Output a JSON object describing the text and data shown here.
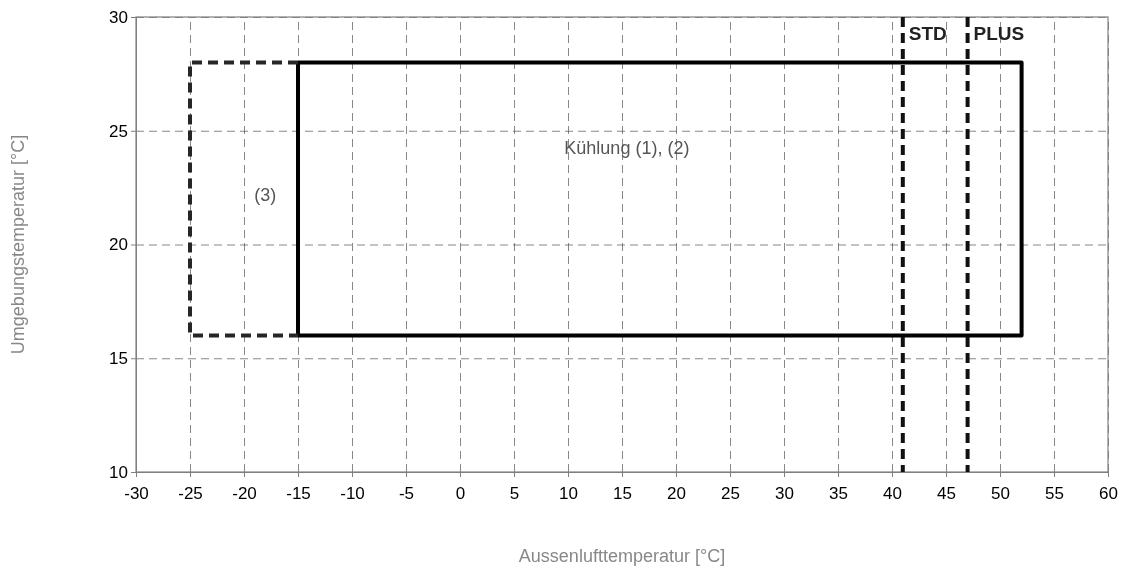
{
  "chart_data": {
    "type": "line",
    "xlabel": "Aussenlufttemperatur [°C]",
    "ylabel": "Umgebungstemperatur  [°C]",
    "xlim": [
      -30,
      60
    ],
    "xticks": [
      -30,
      -25,
      -20,
      -15,
      -10,
      -5,
      0,
      5,
      10,
      15,
      20,
      25,
      30,
      35,
      40,
      45,
      50,
      55,
      60
    ],
    "ylim": [
      10,
      30
    ],
    "yticks": [
      10,
      15,
      20,
      25,
      30
    ],
    "grid": true,
    "marker": "none",
    "series": [
      {
        "color": "#000000",
        "line_style": "solid",
        "x": [
          -15,
          52,
          52,
          -15
        ],
        "values": [
          28,
          28,
          16,
          16
        ]
      },
      {
        "color": "#000000",
        "line_style": "solid",
        "x": [
          -15,
          -15
        ],
        "values": [
          16,
          28
        ]
      },
      {
        "color": "#262626",
        "line_style": "dashed",
        "x": [
          -15,
          -25,
          -25,
          -15
        ],
        "values": [
          28,
          28,
          16,
          16
        ]
      }
    ],
    "ref_lines": [
      {
        "axis": "x",
        "value": 41,
        "label": "STD",
        "color": "#111111",
        "line_style": "dashed"
      },
      {
        "axis": "x",
        "value": 47,
        "label": "PLUS",
        "color": "#111111",
        "line_style": "dashed"
      }
    ],
    "annotations": [
      "Kühlung (1), (2)",
      "(3)"
    ]
  }
}
